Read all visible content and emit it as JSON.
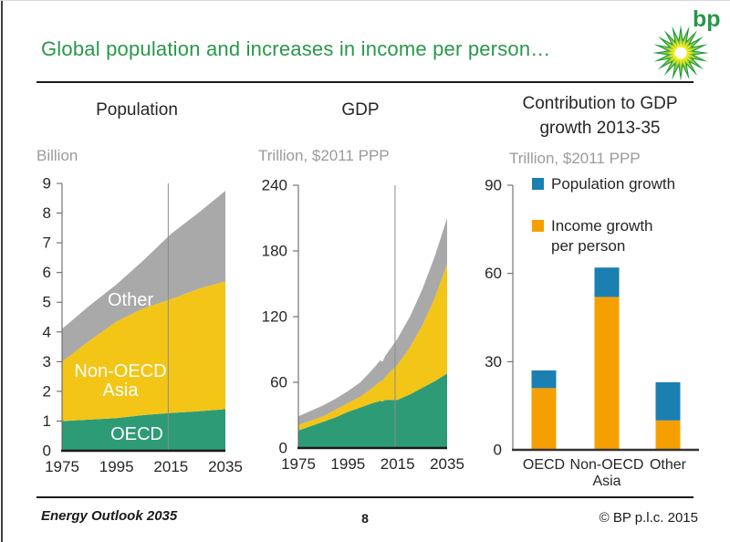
{
  "slide": {
    "title": "Global population and increases in income per person…",
    "logo_text": "bp",
    "footer": {
      "left": "Energy Outlook 2035",
      "page": "8",
      "right": "© BP p.l.c. 2015"
    }
  },
  "colors": {
    "green": "#2E9B77",
    "yellow": "#F3C517",
    "gray": "#A9A9A9",
    "blue": "#1B7FB2",
    "orange": "#F5A000",
    "title_green": "#28984A",
    "axis": "#1A1A1A",
    "muted": "#9B9B9B"
  },
  "chart_data": [
    {
      "id": "population",
      "type": "area",
      "title": "Population",
      "unit_label": "Billion",
      "x": [
        1975,
        1985,
        1995,
        2005,
        2015,
        2025,
        2035
      ],
      "xticks": [
        1975,
        1995,
        2015,
        2035
      ],
      "ylim": [
        0,
        9
      ],
      "yticks": [
        0,
        1,
        2,
        3,
        4,
        5,
        6,
        7,
        8,
        9
      ],
      "marker_year": 2014,
      "grid": false,
      "series": [
        {
          "name": "OECD",
          "color_key": "green",
          "values": [
            1.0,
            1.05,
            1.1,
            1.2,
            1.27,
            1.33,
            1.4
          ]
        },
        {
          "name": "Non-OECD Asia",
          "color_key": "yellow",
          "values": [
            2.0,
            2.65,
            3.25,
            3.6,
            3.83,
            4.12,
            4.3
          ]
        },
        {
          "name": "Other",
          "color_key": "gray",
          "values": [
            1.1,
            1.18,
            1.25,
            1.62,
            2.2,
            2.55,
            3.05
          ]
        }
      ]
    },
    {
      "id": "gdp",
      "type": "area",
      "title": "GDP",
      "unit_label": "Trillion, $2011 PPP",
      "x": [
        1975,
        1980,
        1985,
        1990,
        1995,
        2000,
        2005,
        2008,
        2009,
        2010,
        2015,
        2020,
        2025,
        2030,
        2035
      ],
      "xticks": [
        1975,
        1995,
        2015,
        2035
      ],
      "ylim": [
        0,
        240
      ],
      "yticks": [
        0,
        60,
        120,
        180,
        240
      ],
      "marker_year": 2014,
      "grid": false,
      "series": [
        {
          "name": "OECD",
          "color_key": "green",
          "values": [
            16,
            20,
            24,
            28,
            33,
            37,
            41,
            43,
            42.5,
            44,
            44,
            49,
            55,
            61,
            68
          ]
        },
        {
          "name": "Non-OECD Asia",
          "color_key": "yellow",
          "values": [
            5,
            5,
            5,
            7,
            8,
            10,
            14,
            18,
            18.5,
            21,
            32,
            43,
            57,
            76,
            100
          ]
        },
        {
          "name": "Other",
          "color_key": "gray",
          "values": [
            8,
            9,
            10,
            10,
            11,
            13,
            17,
            19,
            18,
            19,
            24,
            28,
            33,
            38,
            42
          ]
        }
      ]
    },
    {
      "id": "gdp-growth-contribution",
      "type": "bar",
      "title": "Contribution to GDP growth 2013-35",
      "title_lines": [
        "Contribution to GDP",
        "growth 2013-35"
      ],
      "unit_label": "Trillion, $2011 PPP",
      "categories": [
        "OECD",
        "Non-OECD Asia",
        "Other"
      ],
      "ylim": [
        0,
        90
      ],
      "yticks": [
        0,
        30,
        60,
        90
      ],
      "grid": false,
      "legend_position": "upper-left",
      "series": [
        {
          "name": "Income growth per person",
          "color_key": "orange",
          "values": [
            21,
            52,
            10
          ]
        },
        {
          "name": "Population growth",
          "color_key": "blue",
          "values": [
            6,
            10,
            13
          ]
        }
      ],
      "legend": [
        {
          "label": "Population growth",
          "label_lines": [
            "Population growth"
          ],
          "color_key": "blue"
        },
        {
          "label": "Income growth per person",
          "label_lines": [
            "Income growth",
            "per person"
          ],
          "color_key": "orange"
        }
      ]
    }
  ]
}
